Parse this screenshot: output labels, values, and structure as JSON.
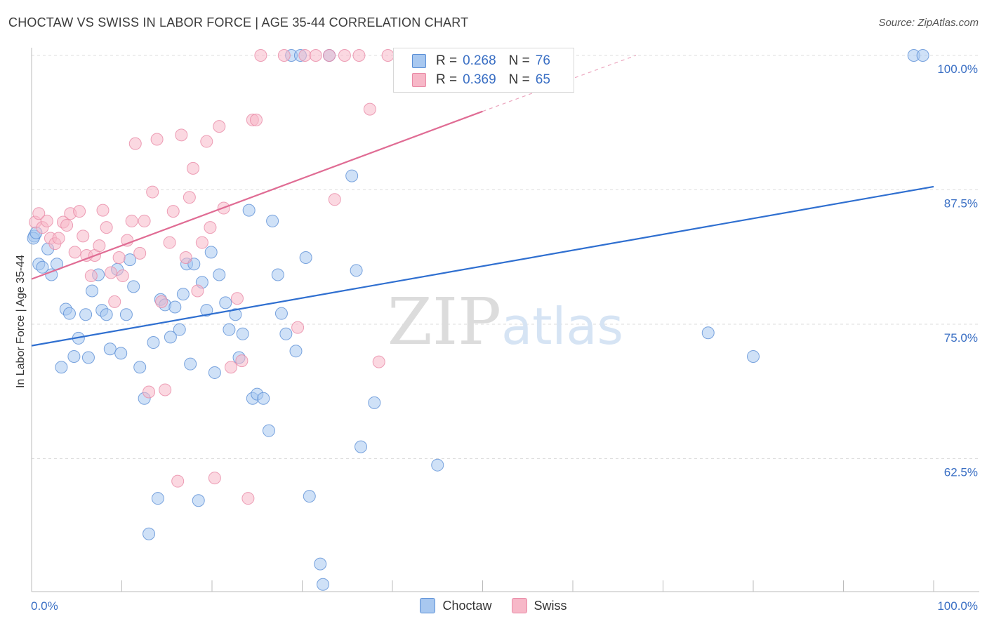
{
  "header": {
    "title": "CHOCTAW VS SWISS IN LABOR FORCE | AGE 35-44 CORRELATION CHART",
    "source": "Source: ZipAtlas.com"
  },
  "legend_top": {
    "rows": [
      {
        "r_label": "R =",
        "r_value": "0.268",
        "n_label": "N =",
        "n_value": "76"
      },
      {
        "r_label": "R =",
        "r_value": "0.369",
        "n_label": "N =",
        "n_value": "65"
      }
    ]
  },
  "legend_bottom": {
    "items": [
      {
        "label": "Choctaw"
      },
      {
        "label": "Swiss"
      }
    ]
  },
  "colors": {
    "choctaw_fill": "#a8c8f0",
    "choctaw_stroke": "#5b8fd6",
    "choctaw_line": "#2f6fd0",
    "swiss_fill": "#f7b8c8",
    "swiss_stroke": "#e98aa6",
    "swiss_line": "#e06c94",
    "tick_label": "#3a6fc4",
    "grid": "#dddddd"
  },
  "chart_data": {
    "type": "scatter",
    "title": "CHOCTAW VS SWISS IN LABOR FORCE | AGE 35-44 CORRELATION CHART",
    "xlabel": "",
    "ylabel": "In Labor Force | Age 35-44",
    "xlim": [
      0,
      100
    ],
    "ylim": [
      49,
      102
    ],
    "x_tick_labels": [
      "0.0%",
      "100.0%"
    ],
    "y_ticks": [
      62.5,
      75.0,
      87.5,
      100.0
    ],
    "y_tick_labels": [
      "62.5%",
      "75.0%",
      "87.5%",
      "100.0%"
    ],
    "grid": true,
    "watermark": "ZIPatlas",
    "series": [
      {
        "name": "Choctaw",
        "r": 0.268,
        "n": 76,
        "trend": {
          "x": [
            0,
            100
          ],
          "y": [
            73.0,
            87.8
          ]
        },
        "points": [
          [
            0.3,
            83.2
          ],
          [
            0.8,
            80.6
          ],
          [
            1.2,
            80.3
          ],
          [
            1.8,
            82.0
          ],
          [
            2.2,
            79.6
          ],
          [
            2.8,
            80.6
          ],
          [
            3.3,
            71.0
          ],
          [
            3.8,
            76.4
          ],
          [
            4.2,
            76.0
          ],
          [
            4.7,
            72.0
          ],
          [
            5.2,
            73.7
          ],
          [
            6.0,
            75.9
          ],
          [
            6.3,
            71.9
          ],
          [
            6.7,
            78.1
          ],
          [
            7.4,
            79.6
          ],
          [
            7.8,
            76.3
          ],
          [
            8.3,
            75.9
          ],
          [
            8.7,
            72.7
          ],
          [
            9.5,
            80.1
          ],
          [
            9.9,
            72.3
          ],
          [
            10.5,
            75.9
          ],
          [
            10.9,
            81.0
          ],
          [
            11.3,
            78.5
          ],
          [
            12.0,
            71.0
          ],
          [
            12.5,
            68.1
          ],
          [
            13.0,
            55.5
          ],
          [
            13.5,
            73.3
          ],
          [
            14.0,
            58.8
          ],
          [
            14.3,
            77.3
          ],
          [
            14.8,
            76.8
          ],
          [
            15.4,
            73.8
          ],
          [
            15.9,
            76.6
          ],
          [
            16.4,
            74.5
          ],
          [
            16.8,
            77.8
          ],
          [
            17.2,
            80.6
          ],
          [
            17.6,
            71.3
          ],
          [
            18.0,
            80.6
          ],
          [
            18.9,
            78.9
          ],
          [
            19.4,
            76.3
          ],
          [
            19.9,
            81.7
          ],
          [
            20.3,
            70.5
          ],
          [
            20.8,
            79.6
          ],
          [
            21.5,
            77.0
          ],
          [
            21.9,
            74.5
          ],
          [
            22.6,
            75.9
          ],
          [
            23.0,
            71.9
          ],
          [
            23.4,
            74.1
          ],
          [
            24.1,
            85.6
          ],
          [
            24.5,
            68.1
          ],
          [
            25.0,
            68.5
          ],
          [
            25.7,
            68.1
          ],
          [
            26.3,
            65.1
          ],
          [
            26.7,
            84.6
          ],
          [
            27.3,
            79.6
          ],
          [
            27.7,
            76.0
          ],
          [
            28.2,
            74.1
          ],
          [
            28.8,
            100.0
          ],
          [
            29.3,
            72.5
          ],
          [
            29.8,
            100.0
          ],
          [
            30.4,
            81.2
          ],
          [
            30.8,
            59.0
          ],
          [
            32.0,
            52.7
          ],
          [
            32.3,
            50.8
          ],
          [
            33.0,
            100.0
          ],
          [
            35.5,
            88.8
          ],
          [
            36.0,
            80.0
          ],
          [
            36.5,
            63.6
          ],
          [
            38.0,
            67.7
          ],
          [
            45.0,
            61.9
          ],
          [
            75.0,
            74.2
          ],
          [
            80.0,
            72.0
          ],
          [
            97.8,
            100.0
          ],
          [
            98.8,
            100.0
          ],
          [
            0.2,
            83.0
          ],
          [
            0.5,
            83.5
          ],
          [
            18.5,
            58.6
          ]
        ]
      },
      {
        "name": "Swiss",
        "r": 0.369,
        "n": 65,
        "trend": {
          "x": [
            0,
            50
          ],
          "y": [
            79.2,
            94.8
          ]
        },
        "trend_extension": {
          "x": [
            50,
            67
          ],
          "y": [
            94.8,
            100.0
          ]
        },
        "points": [
          [
            0.4,
            84.5
          ],
          [
            0.8,
            85.3
          ],
          [
            1.2,
            84.0
          ],
          [
            1.7,
            84.6
          ],
          [
            2.1,
            83.0
          ],
          [
            2.6,
            82.5
          ],
          [
            3.0,
            83.0
          ],
          [
            3.5,
            84.5
          ],
          [
            3.9,
            84.2
          ],
          [
            4.3,
            85.3
          ],
          [
            4.8,
            81.7
          ],
          [
            5.3,
            85.5
          ],
          [
            5.7,
            83.2
          ],
          [
            6.1,
            81.4
          ],
          [
            6.6,
            79.5
          ],
          [
            7.0,
            81.4
          ],
          [
            7.5,
            82.3
          ],
          [
            7.9,
            85.6
          ],
          [
            8.3,
            84.0
          ],
          [
            8.8,
            79.8
          ],
          [
            9.2,
            77.1
          ],
          [
            9.7,
            81.2
          ],
          [
            10.1,
            79.5
          ],
          [
            10.6,
            82.8
          ],
          [
            11.1,
            84.6
          ],
          [
            11.5,
            91.8
          ],
          [
            12.0,
            81.6
          ],
          [
            12.5,
            84.6
          ],
          [
            13.0,
            68.7
          ],
          [
            13.4,
            87.3
          ],
          [
            13.9,
            92.2
          ],
          [
            14.4,
            77.1
          ],
          [
            14.8,
            68.9
          ],
          [
            15.3,
            82.6
          ],
          [
            15.7,
            85.5
          ],
          [
            16.2,
            60.4
          ],
          [
            16.6,
            92.6
          ],
          [
            17.1,
            81.2
          ],
          [
            17.5,
            86.8
          ],
          [
            17.9,
            89.5
          ],
          [
            18.4,
            78.1
          ],
          [
            18.9,
            82.6
          ],
          [
            19.4,
            92.0
          ],
          [
            19.8,
            84.0
          ],
          [
            20.3,
            60.7
          ],
          [
            20.8,
            93.4
          ],
          [
            21.3,
            85.8
          ],
          [
            22.1,
            71.0
          ],
          [
            22.8,
            77.4
          ],
          [
            23.3,
            71.6
          ],
          [
            24.0,
            58.8
          ],
          [
            24.5,
            94.0
          ],
          [
            24.9,
            94.0
          ],
          [
            25.4,
            100.0
          ],
          [
            28.0,
            100.0
          ],
          [
            29.5,
            74.7
          ],
          [
            30.3,
            100.0
          ],
          [
            31.5,
            100.0
          ],
          [
            33.0,
            100.0
          ],
          [
            33.6,
            86.6
          ],
          [
            34.7,
            100.0
          ],
          [
            36.3,
            100.0
          ],
          [
            37.5,
            95.0
          ],
          [
            38.5,
            71.5
          ],
          [
            39.5,
            100.0
          ]
        ]
      }
    ]
  }
}
